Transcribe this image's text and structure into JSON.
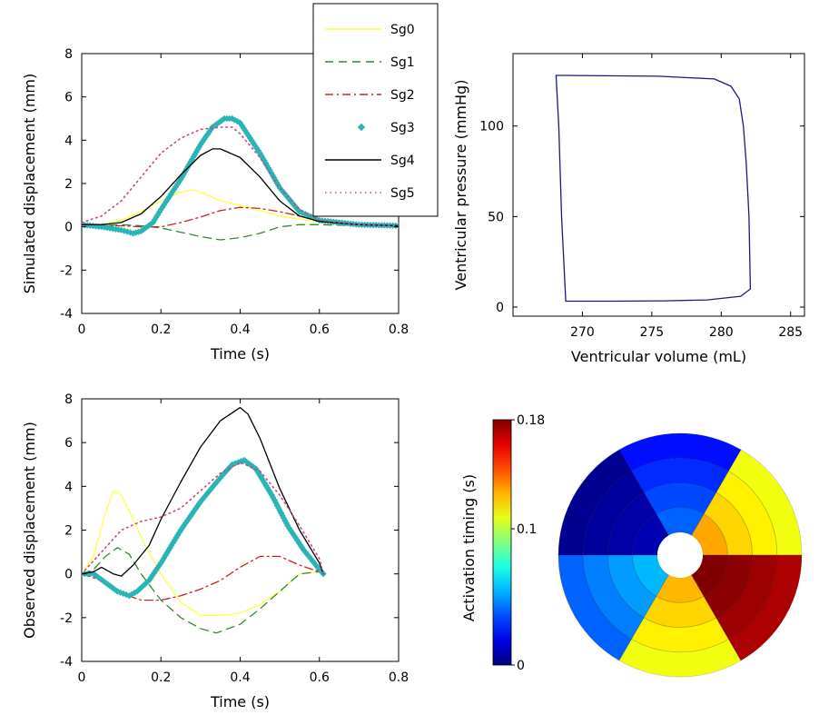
{
  "chart_data": [
    {
      "type": "line",
      "id": "simulated",
      "xlabel": "Time (s)",
      "ylabel": "Simulated displacement (mm)",
      "xlim": [
        0,
        0.8
      ],
      "ylim": [
        -4,
        8
      ],
      "xticks": [
        0,
        0.2,
        0.4,
        0.6,
        0.8
      ],
      "xtick_labels": [
        "0",
        "0.2",
        "0.4",
        "0.6",
        "0.8"
      ],
      "yticks": [
        -4,
        -2,
        0,
        2,
        4,
        6,
        8
      ],
      "ytick_labels": [
        "-4",
        "-2",
        "0",
        "2",
        "4",
        "6",
        "8"
      ],
      "legend": {
        "placement": "top-right-outside",
        "entries": [
          "Sg0",
          "Sg1",
          "Sg2",
          "Sg3",
          "Sg4",
          "Sg5"
        ]
      },
      "series": [
        {
          "name": "Sg0",
          "color": "#ffff40",
          "style": "solid",
          "x": [
            0,
            0.05,
            0.1,
            0.15,
            0.2,
            0.25,
            0.28,
            0.3,
            0.35,
            0.4,
            0.45,
            0.5,
            0.55,
            0.6,
            0.7,
            0.8
          ],
          "y": [
            0.05,
            0.1,
            0.3,
            0.7,
            1.2,
            1.6,
            1.7,
            1.6,
            1.2,
            1.0,
            0.75,
            0.5,
            0.35,
            0.25,
            0.1,
            0.05
          ]
        },
        {
          "name": "Sg1",
          "color": "#2e8b2e",
          "style": "dashed",
          "x": [
            0,
            0.05,
            0.1,
            0.15,
            0.2,
            0.25,
            0.3,
            0.35,
            0.4,
            0.45,
            0.5,
            0.55,
            0.6,
            0.7,
            0.8
          ],
          "y": [
            0.05,
            0.05,
            0.1,
            0.05,
            -0.05,
            -0.25,
            -0.45,
            -0.6,
            -0.5,
            -0.3,
            0.0,
            0.1,
            0.1,
            0.05,
            0.05
          ]
        },
        {
          "name": "Sg2",
          "color": "#cc2222",
          "style": "dashdot",
          "x": [
            0,
            0.1,
            0.15,
            0.2,
            0.25,
            0.3,
            0.35,
            0.4,
            0.45,
            0.5,
            0.55,
            0.6,
            0.7,
            0.8
          ],
          "y": [
            0.05,
            0.05,
            0.0,
            0.0,
            0.2,
            0.45,
            0.75,
            0.9,
            0.85,
            0.7,
            0.5,
            0.3,
            0.1,
            0.05
          ]
        },
        {
          "name": "Sg3",
          "color": "#2ab5b5",
          "style": "markers",
          "x": [
            0,
            0.05,
            0.1,
            0.13,
            0.15,
            0.18,
            0.2,
            0.25,
            0.3,
            0.33,
            0.36,
            0.38,
            0.4,
            0.45,
            0.5,
            0.55,
            0.6,
            0.7,
            0.8
          ],
          "y": [
            0.1,
            0.0,
            -0.15,
            -0.3,
            -0.2,
            0.2,
            0.8,
            2.2,
            3.8,
            4.6,
            5.0,
            5.0,
            4.8,
            3.4,
            1.8,
            0.7,
            0.3,
            0.1,
            0.05
          ]
        },
        {
          "name": "Sg4",
          "color": "#000000",
          "style": "solid",
          "x": [
            0,
            0.05,
            0.1,
            0.15,
            0.2,
            0.25,
            0.3,
            0.33,
            0.35,
            0.4,
            0.45,
            0.5,
            0.55,
            0.6,
            0.7,
            0.8
          ],
          "y": [
            0.1,
            0.1,
            0.2,
            0.6,
            1.4,
            2.4,
            3.3,
            3.6,
            3.6,
            3.2,
            2.3,
            1.2,
            0.5,
            0.25,
            0.1,
            0.05
          ]
        },
        {
          "name": "Sg5",
          "color": "#cc4488",
          "style": "dotted",
          "x": [
            0,
            0.05,
            0.1,
            0.15,
            0.2,
            0.25,
            0.3,
            0.35,
            0.38,
            0.4,
            0.45,
            0.5,
            0.55,
            0.6,
            0.7,
            0.8
          ],
          "y": [
            0.2,
            0.5,
            1.2,
            2.3,
            3.4,
            4.1,
            4.5,
            4.6,
            4.6,
            4.3,
            3.2,
            1.8,
            0.8,
            0.3,
            0.1,
            0.05
          ]
        }
      ]
    },
    {
      "type": "line",
      "id": "pv_loop",
      "xlabel": "Ventricular volume (mL)",
      "ylabel": "Ventricular pressure (mmHg)",
      "xlim": [
        265,
        286
      ],
      "ylim": [
        -5,
        140
      ],
      "xticks": [
        270,
        275,
        280,
        285
      ],
      "xtick_labels": [
        "270",
        "275",
        "280",
        "285"
      ],
      "yticks": [
        0,
        50,
        100
      ],
      "ytick_labels": [
        "0",
        "50",
        "100"
      ],
      "series": [
        {
          "name": "",
          "color": "#1a1a80",
          "style": "solid",
          "x": [
            268.1,
            275.5,
            279.5,
            280.7,
            281.3,
            281.6,
            281.8,
            282.0,
            282.1,
            281.4,
            279.0,
            276.0,
            272.0,
            268.8,
            268.5,
            268.3,
            268.1
          ],
          "y": [
            128,
            127.5,
            126,
            122,
            115,
            100,
            80,
            50,
            10,
            6,
            4,
            3.5,
            3.3,
            3.3,
            50,
            100,
            128
          ]
        }
      ]
    },
    {
      "type": "line",
      "id": "observed",
      "xlabel": "Time (s)",
      "ylabel": "Observed displacement (mm)",
      "xlim": [
        0,
        0.8
      ],
      "ylim": [
        -4,
        8
      ],
      "xticks": [
        0,
        0.2,
        0.4,
        0.6,
        0.8
      ],
      "xtick_labels": [
        "0",
        "0.2",
        "0.4",
        "0.6",
        "0.8"
      ],
      "yticks": [
        -4,
        -2,
        0,
        2,
        4,
        6,
        8
      ],
      "ytick_labels": [
        "-4",
        "-2",
        "0",
        "2",
        "4",
        "6",
        "8"
      ],
      "series": [
        {
          "name": "Sg0",
          "color": "#ffff40",
          "style": "solid",
          "x": [
            0,
            0.03,
            0.06,
            0.08,
            0.1,
            0.13,
            0.16,
            0.2,
            0.25,
            0.3,
            0.35,
            0.4,
            0.45,
            0.5,
            0.55,
            0.6,
            0.61
          ],
          "y": [
            0,
            0.8,
            2.8,
            3.8,
            3.6,
            2.5,
            1.3,
            0.0,
            -1.3,
            -1.9,
            -1.9,
            -1.8,
            -1.4,
            -0.8,
            0.0,
            0.1,
            0.0
          ]
        },
        {
          "name": "Sg1",
          "color": "#2e8b2e",
          "style": "dashed",
          "x": [
            0,
            0.03,
            0.06,
            0.09,
            0.12,
            0.15,
            0.2,
            0.25,
            0.3,
            0.34,
            0.4,
            0.45,
            0.5,
            0.55,
            0.6,
            0.61
          ],
          "y": [
            0,
            0.2,
            0.8,
            1.2,
            0.9,
            0.0,
            -1.2,
            -2.0,
            -2.5,
            -2.7,
            -2.3,
            -1.6,
            -0.8,
            0.0,
            0.1,
            0.0
          ]
        },
        {
          "name": "Sg2",
          "color": "#cc2222",
          "style": "dashdot",
          "x": [
            0,
            0.05,
            0.1,
            0.15,
            0.2,
            0.25,
            0.3,
            0.35,
            0.4,
            0.45,
            0.5,
            0.55,
            0.6,
            0.61
          ],
          "y": [
            0,
            -0.3,
            -0.9,
            -1.2,
            -1.2,
            -1.0,
            -0.7,
            -0.3,
            0.3,
            0.8,
            0.8,
            0.4,
            0.1,
            0.0
          ]
        },
        {
          "name": "Sg3",
          "color": "#2ab5b5",
          "style": "markers",
          "x": [
            0,
            0.03,
            0.06,
            0.09,
            0.12,
            0.14,
            0.17,
            0.2,
            0.25,
            0.3,
            0.35,
            0.38,
            0.41,
            0.44,
            0.48,
            0.52,
            0.56,
            0.6,
            0.61
          ],
          "y": [
            0,
            0.0,
            -0.4,
            -0.8,
            -1.0,
            -0.8,
            -0.3,
            0.5,
            2.0,
            3.3,
            4.4,
            5.0,
            5.2,
            4.8,
            3.6,
            2.2,
            1.1,
            0.2,
            0.0
          ]
        },
        {
          "name": "Sg4",
          "color": "#000000",
          "style": "solid",
          "x": [
            0,
            0.03,
            0.05,
            0.08,
            0.1,
            0.13,
            0.17,
            0.2,
            0.25,
            0.3,
            0.35,
            0.4,
            0.42,
            0.45,
            0.5,
            0.55,
            0.6,
            0.61
          ],
          "y": [
            0,
            0.1,
            0.3,
            0.0,
            -0.1,
            0.4,
            1.3,
            2.5,
            4.2,
            5.8,
            7.0,
            7.6,
            7.3,
            6.2,
            3.9,
            2.0,
            0.5,
            0.0
          ]
        },
        {
          "name": "Sg5",
          "color": "#cc4488",
          "style": "dotted",
          "x": [
            0,
            0.05,
            0.1,
            0.15,
            0.2,
            0.25,
            0.3,
            0.35,
            0.4,
            0.45,
            0.5,
            0.55,
            0.6,
            0.61
          ],
          "y": [
            0,
            1.0,
            2.0,
            2.4,
            2.6,
            3.0,
            3.8,
            4.6,
            5.1,
            4.7,
            3.6,
            2.2,
            0.7,
            0.0
          ]
        }
      ]
    },
    {
      "type": "heatmap",
      "id": "activation_bullseye",
      "colorbar_label": "Activation timing (s)",
      "colorbar_tick_labels": [
        "0",
        "0.1",
        "0.18"
      ],
      "colorbar_ticks": [
        0,
        0.1,
        0.18
      ],
      "crange": [
        0,
        0.18
      ],
      "rings": [
        {
          "segments": [
            {
              "from_deg": 0,
              "to_deg": 60,
              "value": 0.11
            },
            {
              "from_deg": 60,
              "to_deg": 120,
              "value": 0.025
            },
            {
              "from_deg": 120,
              "to_deg": 180,
              "value": 0.003
            },
            {
              "from_deg": 180,
              "to_deg": 240,
              "value": 0.04
            },
            {
              "from_deg": 240,
              "to_deg": 300,
              "value": 0.11
            },
            {
              "from_deg": 300,
              "to_deg": 360,
              "value": 0.172
            }
          ]
        },
        {
          "segments": [
            {
              "from_deg": 0,
              "to_deg": 60,
              "value": 0.115
            },
            {
              "from_deg": 60,
              "to_deg": 120,
              "value": 0.03
            },
            {
              "from_deg": 120,
              "to_deg": 180,
              "value": 0.005
            },
            {
              "from_deg": 180,
              "to_deg": 240,
              "value": 0.045
            },
            {
              "from_deg": 240,
              "to_deg": 300,
              "value": 0.115
            },
            {
              "from_deg": 300,
              "to_deg": 360,
              "value": 0.175
            }
          ]
        },
        {
          "segments": [
            {
              "from_deg": 0,
              "to_deg": 60,
              "value": 0.12
            },
            {
              "from_deg": 60,
              "to_deg": 120,
              "value": 0.035
            },
            {
              "from_deg": 120,
              "to_deg": 180,
              "value": 0.007
            },
            {
              "from_deg": 180,
              "to_deg": 240,
              "value": 0.05
            },
            {
              "from_deg": 240,
              "to_deg": 300,
              "value": 0.12
            },
            {
              "from_deg": 300,
              "to_deg": 360,
              "value": 0.178
            }
          ]
        },
        {
          "segments": [
            {
              "from_deg": 0,
              "to_deg": 60,
              "value": 0.128
            },
            {
              "from_deg": 60,
              "to_deg": 120,
              "value": 0.04
            },
            {
              "from_deg": 120,
              "to_deg": 180,
              "value": 0.009
            },
            {
              "from_deg": 180,
              "to_deg": 240,
              "value": 0.055
            },
            {
              "from_deg": 240,
              "to_deg": 300,
              "value": 0.125
            },
            {
              "from_deg": 300,
              "to_deg": 360,
              "value": 0.18
            }
          ]
        }
      ]
    }
  ]
}
